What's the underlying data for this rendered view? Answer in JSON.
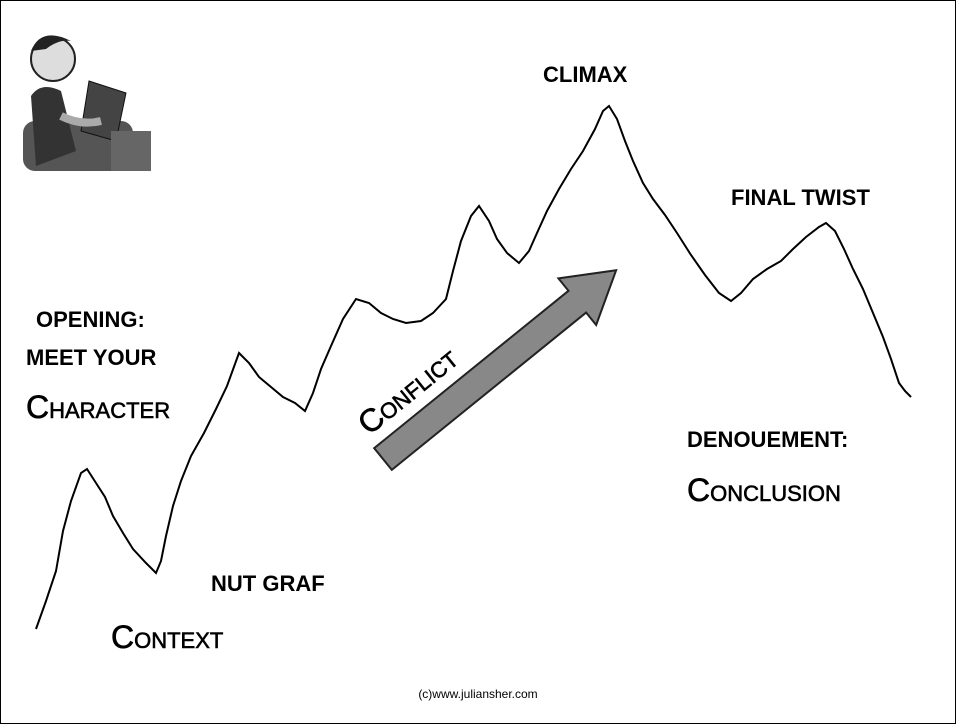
{
  "labels": {
    "opening": [
      "OPENING:",
      "MEET YOUR",
      "Character"
    ],
    "nut_graf": [
      "NUT GRAF",
      "Context"
    ],
    "conflict": "Conflict",
    "climax": "CLIMAX",
    "final_twist": "FINAL TWIST",
    "denouement": [
      "DENOUEMENT:",
      "Conclusion"
    ]
  },
  "footer": "(c)www.juliansher.com"
}
